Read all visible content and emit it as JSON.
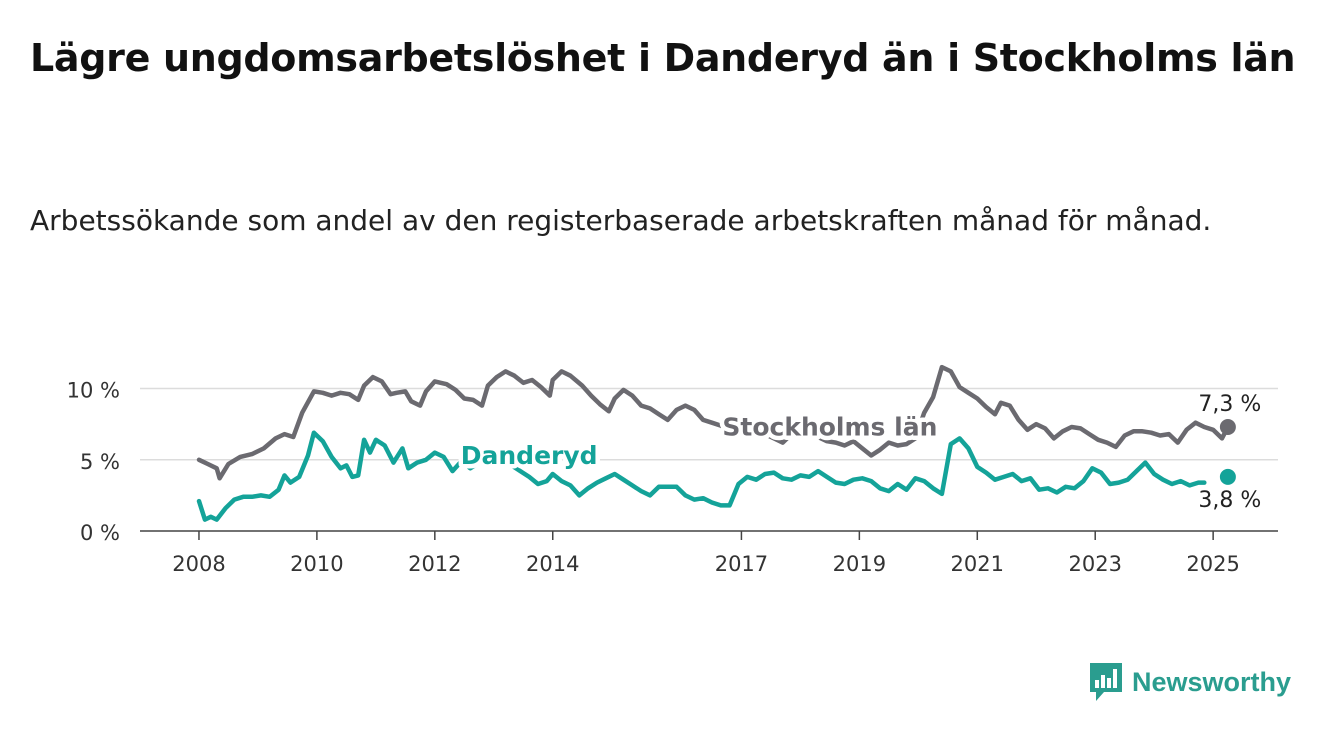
{
  "header": {
    "title": "Lägre ungdomsarbetslöshet i Danderyd än i Stockholms län",
    "subtitle": "Arbetssökande som andel av den registerbaserade arbetskraften månad för månad."
  },
  "brand": {
    "name": "Newsworthy",
    "icon": "newsworthy-logo-icon",
    "color": "#2a9d8f"
  },
  "chart_data": {
    "type": "line",
    "title": "Lägre ungdomsarbetslöshet i Danderyd än i Stockholms län",
    "subtitle": "Arbetssökande som andel av den registerbaserade arbetskraften månad för månad.",
    "xlabel": "",
    "ylabel": "",
    "x_range": [
      2007.0,
      2026.3
    ],
    "ylim": [
      0,
      12
    ],
    "y_ticks": [
      {
        "value": 0,
        "label": "0 %"
      },
      {
        "value": 5,
        "label": "5 %"
      },
      {
        "value": 10,
        "label": "10 %"
      }
    ],
    "x_ticks": [
      {
        "value": 2008.0,
        "label": "2008"
      },
      {
        "value": 2010.0,
        "label": "2010"
      },
      {
        "value": 2012.0,
        "label": "2012"
      },
      {
        "value": 2014.0,
        "label": "2014"
      },
      {
        "value": 2017.2,
        "label": "2017"
      },
      {
        "value": 2019.2,
        "label": "2019"
      },
      {
        "value": 2021.2,
        "label": "2021"
      },
      {
        "value": 2023.2,
        "label": "2023"
      },
      {
        "value": 2025.2,
        "label": "2025"
      }
    ],
    "grid": "horizontal",
    "series": [
      {
        "name": "Stockholms län",
        "color": "#6b6a70",
        "end_label": "7,3 %",
        "points": [
          [
            2008.0,
            5.0
          ],
          [
            2008.15,
            4.7
          ],
          [
            2008.3,
            4.4
          ],
          [
            2008.35,
            3.7
          ],
          [
            2008.5,
            4.7
          ],
          [
            2008.7,
            5.2
          ],
          [
            2008.9,
            5.4
          ],
          [
            2009.1,
            5.8
          ],
          [
            2009.3,
            6.5
          ],
          [
            2009.45,
            6.8
          ],
          [
            2009.6,
            6.6
          ],
          [
            2009.75,
            8.3
          ],
          [
            2009.95,
            9.8
          ],
          [
            2010.1,
            9.7
          ],
          [
            2010.25,
            9.5
          ],
          [
            2010.4,
            9.7
          ],
          [
            2010.55,
            9.6
          ],
          [
            2010.7,
            9.2
          ],
          [
            2010.8,
            10.2
          ],
          [
            2010.95,
            10.8
          ],
          [
            2011.1,
            10.5
          ],
          [
            2011.25,
            9.6
          ],
          [
            2011.35,
            9.7
          ],
          [
            2011.5,
            9.8
          ],
          [
            2011.6,
            9.1
          ],
          [
            2011.75,
            8.8
          ],
          [
            2011.85,
            9.8
          ],
          [
            2012.0,
            10.5
          ],
          [
            2012.2,
            10.3
          ],
          [
            2012.35,
            9.9
          ],
          [
            2012.5,
            9.3
          ],
          [
            2012.65,
            9.2
          ],
          [
            2012.8,
            8.8
          ],
          [
            2012.9,
            10.2
          ],
          [
            2013.05,
            10.8
          ],
          [
            2013.2,
            11.2
          ],
          [
            2013.35,
            10.9
          ],
          [
            2013.5,
            10.4
          ],
          [
            2013.65,
            10.6
          ],
          [
            2013.8,
            10.1
          ],
          [
            2013.95,
            9.5
          ],
          [
            2014.0,
            10.6
          ],
          [
            2014.15,
            11.2
          ],
          [
            2014.3,
            10.9
          ],
          [
            2014.5,
            10.2
          ],
          [
            2014.65,
            9.5
          ],
          [
            2014.8,
            8.9
          ],
          [
            2014.95,
            8.4
          ],
          [
            2015.05,
            9.3
          ],
          [
            2015.2,
            9.9
          ],
          [
            2015.35,
            9.5
          ],
          [
            2015.5,
            8.8
          ],
          [
            2015.65,
            8.6
          ],
          [
            2015.8,
            8.2
          ],
          [
            2015.95,
            7.8
          ],
          [
            2016.1,
            8.5
          ],
          [
            2016.25,
            8.8
          ],
          [
            2016.4,
            8.5
          ],
          [
            2016.55,
            7.8
          ],
          [
            2016.7,
            7.6
          ],
          [
            2016.85,
            7.4
          ],
          [
            2017.0,
            6.9
          ],
          [
            2017.15,
            7.2
          ],
          [
            2017.3,
            7.5
          ],
          [
            2017.45,
            7.1
          ],
          [
            2017.6,
            6.8
          ],
          [
            2017.75,
            6.5
          ],
          [
            2017.9,
            6.2
          ],
          [
            2018.05,
            6.8
          ],
          [
            2018.2,
            7.1
          ],
          [
            2018.35,
            6.9
          ],
          [
            2018.5,
            6.6
          ],
          [
            2018.65,
            6.3
          ],
          [
            2018.8,
            6.2
          ],
          [
            2018.95,
            6.0
          ],
          [
            2019.1,
            6.3
          ],
          [
            2019.25,
            5.8
          ],
          [
            2019.4,
            5.3
          ],
          [
            2019.55,
            5.7
          ],
          [
            2019.7,
            6.2
          ],
          [
            2019.85,
            6.0
          ],
          [
            2020.0,
            6.1
          ],
          [
            2020.15,
            6.5
          ],
          [
            2020.3,
            8.3
          ],
          [
            2020.45,
            9.4
          ],
          [
            2020.6,
            11.5
          ],
          [
            2020.75,
            11.2
          ],
          [
            2020.9,
            10.1
          ],
          [
            2021.05,
            9.7
          ],
          [
            2021.2,
            9.3
          ],
          [
            2021.35,
            8.7
          ],
          [
            2021.5,
            8.2
          ],
          [
            2021.6,
            9.0
          ],
          [
            2021.75,
            8.8
          ],
          [
            2021.9,
            7.8
          ],
          [
            2022.05,
            7.1
          ],
          [
            2022.2,
            7.5
          ],
          [
            2022.35,
            7.2
          ],
          [
            2022.5,
            6.5
          ],
          [
            2022.65,
            7.0
          ],
          [
            2022.8,
            7.3
          ],
          [
            2022.95,
            7.2
          ],
          [
            2023.1,
            6.8
          ],
          [
            2023.25,
            6.4
          ],
          [
            2023.4,
            6.2
          ],
          [
            2023.55,
            5.9
          ],
          [
            2023.7,
            6.7
          ],
          [
            2023.85,
            7.0
          ],
          [
            2024.0,
            7.0
          ],
          [
            2024.15,
            6.9
          ],
          [
            2024.3,
            6.7
          ],
          [
            2024.45,
            6.8
          ],
          [
            2024.6,
            6.2
          ],
          [
            2024.75,
            7.1
          ],
          [
            2024.9,
            7.6
          ],
          [
            2025.05,
            7.3
          ],
          [
            2025.2,
            7.1
          ],
          [
            2025.35,
            6.5
          ],
          [
            2025.45,
            7.3
          ]
        ]
      },
      {
        "name": "Danderyd",
        "color": "#14a399",
        "end_label": "3,8 %",
        "points": [
          [
            2008.0,
            2.1
          ],
          [
            2008.1,
            0.8
          ],
          [
            2008.2,
            1.0
          ],
          [
            2008.3,
            0.8
          ],
          [
            2008.45,
            1.6
          ],
          [
            2008.6,
            2.2
          ],
          [
            2008.75,
            2.4
          ],
          [
            2008.9,
            2.4
          ],
          [
            2009.05,
            2.5
          ],
          [
            2009.2,
            2.4
          ],
          [
            2009.35,
            2.9
          ],
          [
            2009.45,
            3.9
          ],
          [
            2009.55,
            3.4
          ],
          [
            2009.7,
            3.8
          ],
          [
            2009.85,
            5.3
          ],
          [
            2009.95,
            6.9
          ],
          [
            2010.1,
            6.3
          ],
          [
            2010.25,
            5.2
          ],
          [
            2010.4,
            4.4
          ],
          [
            2010.5,
            4.6
          ],
          [
            2010.6,
            3.8
          ],
          [
            2010.7,
            3.9
          ],
          [
            2010.8,
            6.4
          ],
          [
            2010.9,
            5.5
          ],
          [
            2011.0,
            6.4
          ],
          [
            2011.15,
            6.0
          ],
          [
            2011.3,
            4.8
          ],
          [
            2011.45,
            5.8
          ],
          [
            2011.55,
            4.4
          ],
          [
            2011.7,
            4.8
          ],
          [
            2011.85,
            5.0
          ],
          [
            2012.0,
            5.5
          ],
          [
            2012.15,
            5.2
          ],
          [
            2012.3,
            4.2
          ],
          [
            2012.45,
            4.9
          ],
          [
            2012.6,
            4.4
          ],
          [
            2012.75,
            4.8
          ],
          [
            2012.9,
            4.6
          ],
          [
            2013.05,
            5.3
          ],
          [
            2013.15,
            5.6
          ],
          [
            2013.3,
            4.6
          ],
          [
            2013.45,
            4.2
          ],
          [
            2013.6,
            3.8
          ],
          [
            2013.75,
            3.3
          ],
          [
            2013.9,
            3.5
          ],
          [
            2014.0,
            4.0
          ],
          [
            2014.15,
            3.5
          ],
          [
            2014.3,
            3.2
          ],
          [
            2014.45,
            2.5
          ],
          [
            2014.6,
            3.0
          ],
          [
            2014.75,
            3.4
          ],
          [
            2014.9,
            3.7
          ],
          [
            2015.05,
            4.0
          ],
          [
            2015.2,
            3.6
          ],
          [
            2015.35,
            3.2
          ],
          [
            2015.5,
            2.8
          ],
          [
            2015.65,
            2.5
          ],
          [
            2015.8,
            3.1
          ],
          [
            2015.95,
            3.1
          ],
          [
            2016.1,
            3.1
          ],
          [
            2016.25,
            2.5
          ],
          [
            2016.4,
            2.2
          ],
          [
            2016.55,
            2.3
          ],
          [
            2016.7,
            2.0
          ],
          [
            2016.85,
            1.8
          ],
          [
            2017.0,
            1.8
          ],
          [
            2017.15,
            3.3
          ],
          [
            2017.3,
            3.8
          ],
          [
            2017.45,
            3.6
          ],
          [
            2017.6,
            4.0
          ],
          [
            2017.75,
            4.1
          ],
          [
            2017.9,
            3.7
          ],
          [
            2018.05,
            3.6
          ],
          [
            2018.2,
            3.9
          ],
          [
            2018.35,
            3.8
          ],
          [
            2018.5,
            4.2
          ],
          [
            2018.65,
            3.8
          ],
          [
            2018.8,
            3.4
          ],
          [
            2018.95,
            3.3
          ],
          [
            2019.1,
            3.6
          ],
          [
            2019.25,
            3.7
          ],
          [
            2019.4,
            3.5
          ],
          [
            2019.55,
            3.0
          ],
          [
            2019.7,
            2.8
          ],
          [
            2019.85,
            3.3
          ],
          [
            2020.0,
            2.9
          ],
          [
            2020.15,
            3.7
          ],
          [
            2020.3,
            3.5
          ],
          [
            2020.45,
            3.0
          ],
          [
            2020.6,
            2.6
          ],
          [
            2020.75,
            6.1
          ],
          [
            2020.9,
            6.5
          ],
          [
            2021.05,
            5.8
          ],
          [
            2021.2,
            4.5
          ],
          [
            2021.35,
            4.1
          ],
          [
            2021.5,
            3.6
          ],
          [
            2021.65,
            3.8
          ],
          [
            2021.8,
            4.0
          ],
          [
            2021.95,
            3.5
          ],
          [
            2022.1,
            3.7
          ],
          [
            2022.25,
            2.9
          ],
          [
            2022.4,
            3.0
          ],
          [
            2022.55,
            2.7
          ],
          [
            2022.7,
            3.1
          ],
          [
            2022.85,
            3.0
          ],
          [
            2023.0,
            3.5
          ],
          [
            2023.15,
            4.4
          ],
          [
            2023.3,
            4.1
          ],
          [
            2023.45,
            3.3
          ],
          [
            2023.6,
            3.4
          ],
          [
            2023.75,
            3.6
          ],
          [
            2023.9,
            4.2
          ],
          [
            2024.05,
            4.8
          ],
          [
            2024.2,
            4.0
          ],
          [
            2024.35,
            3.6
          ],
          [
            2024.5,
            3.3
          ],
          [
            2024.65,
            3.5
          ],
          [
            2024.8,
            3.2
          ],
          [
            2024.95,
            3.4
          ],
          [
            2025.05,
            3.4
          ]
        ],
        "end_point": [
          2025.45,
          3.8
        ]
      }
    ],
    "annotations": [
      {
        "text": "Stockholms län",
        "series": "Stockholms län",
        "x": 2018.7,
        "y": 6.7
      },
      {
        "text": "Danderyd",
        "series": "Danderyd",
        "x": 2013.6,
        "y": 4.7
      }
    ]
  }
}
